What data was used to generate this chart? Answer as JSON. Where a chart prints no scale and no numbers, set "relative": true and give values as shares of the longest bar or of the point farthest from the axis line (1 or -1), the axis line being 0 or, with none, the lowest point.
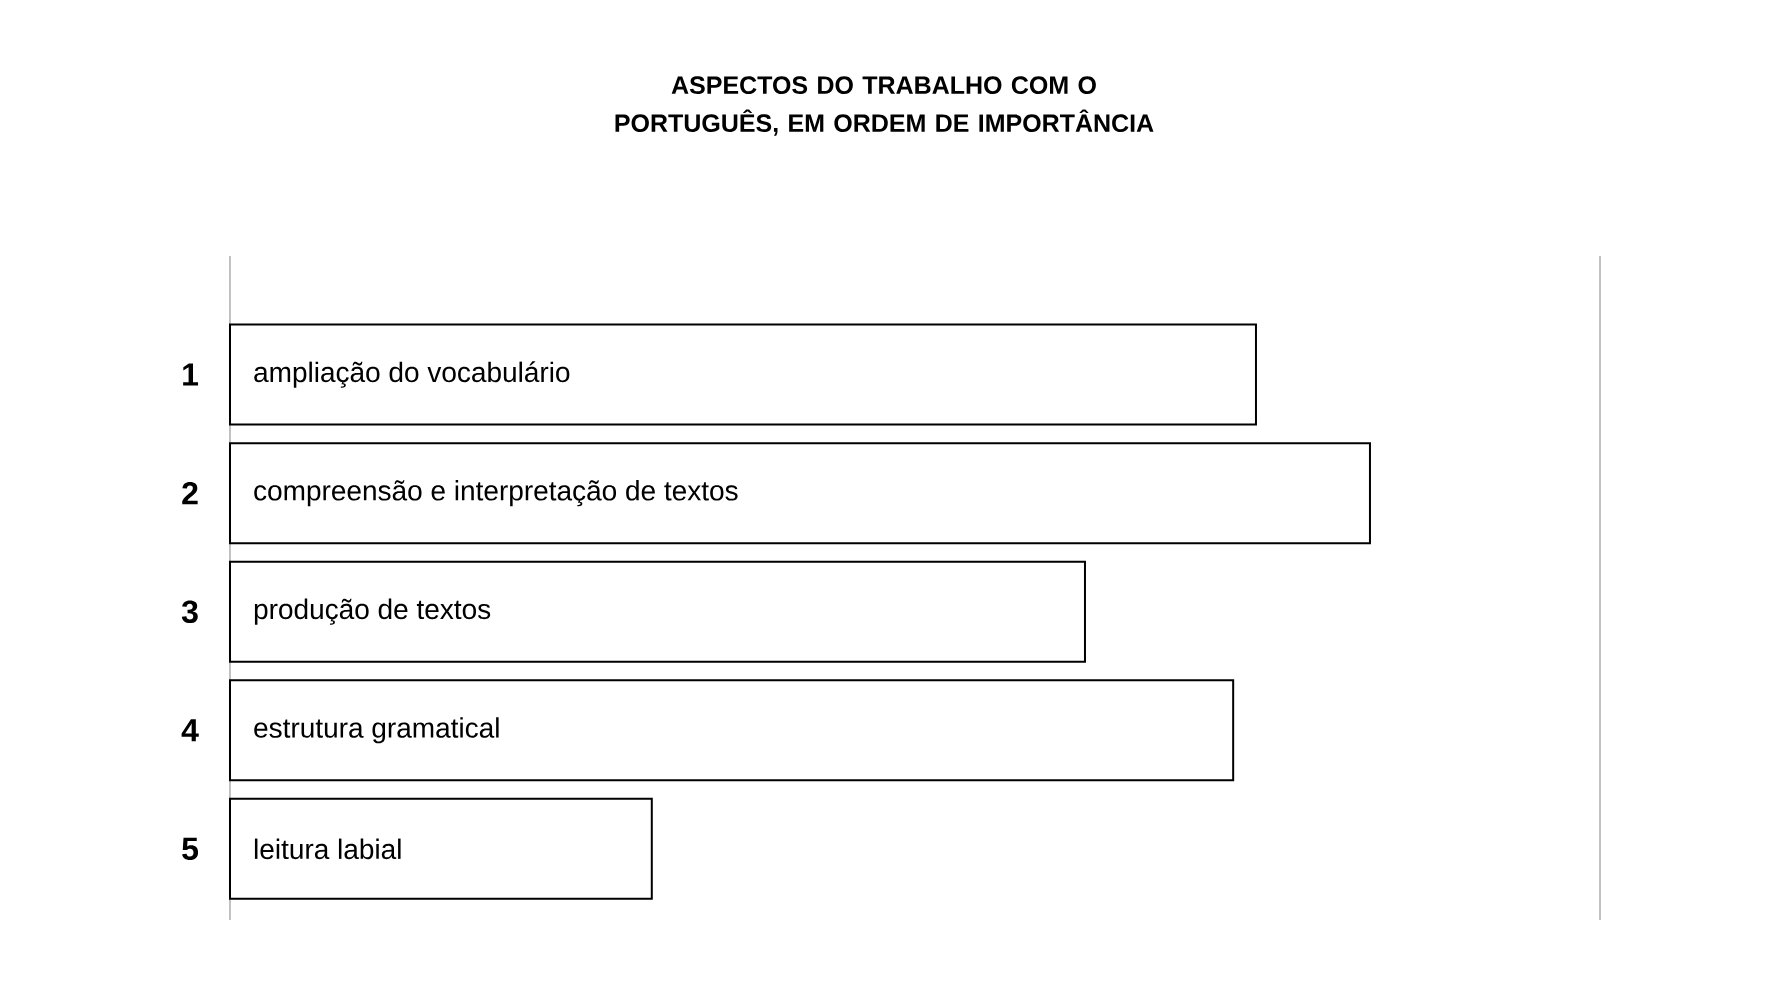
{
  "chart_data": {
    "type": "bar",
    "orientation": "horizontal",
    "relative": true,
    "title": "ASPECTOS DO TRABALHO COM O PORTUGUÊS, EM ORDEM DE IMPORTÂNCIA",
    "categories": [
      "1",
      "2",
      "3",
      "4",
      "5"
    ],
    "values": [
      0.9,
      1,
      0.75,
      0.88,
      0.37
    ],
    "color": "#ffffff",
    "tick_labels": "y",
    "annotations": [
      "ampliação do vocabulário",
      "compreensão e interpretação de textos",
      "produção de textos",
      "estrutura gramatical",
      "leitura labial"
    ]
  }
}
